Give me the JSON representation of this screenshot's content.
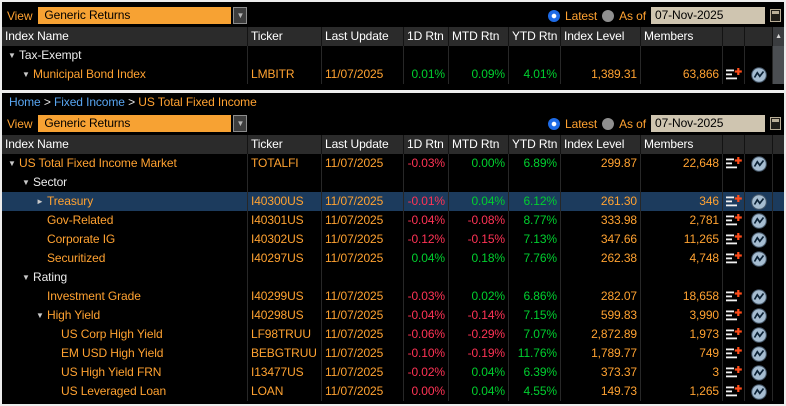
{
  "colors": {
    "amber_text": "#ffa231",
    "dropdown_bg": "#f7a233",
    "positive_green": "#00d02f",
    "negative_red": "#ff3355",
    "selected_row_bg": "#1c3b5d",
    "link_blue": "#58a5f0",
    "radio_selected_blue": "#1e6be6",
    "date_field_bg": "#cfc5b0",
    "header_bg": "#2b2b2b"
  },
  "icons": {
    "dropdown_arrow": "▼",
    "scroll_up": "▲",
    "tree_expanded": "▼",
    "tree_collapsed": "►"
  },
  "breadcrumb": {
    "separator": ">",
    "items": [
      {
        "label": "Home",
        "color": "blue"
      },
      {
        "label": "Fixed Income",
        "color": "blue"
      },
      {
        "label": "US Total Fixed Income",
        "color": "orange"
      }
    ]
  },
  "top_panel": {
    "view_label": "View",
    "view_value": "Generic Returns",
    "latest_label": "Latest",
    "as_of_label": "As of",
    "date_value": "07-Nov-2025",
    "scroll": true,
    "columns": [
      "Index Name",
      "Ticker",
      "Last Update",
      "1D Rtn",
      "MTD Rtn",
      "YTD Rtn",
      "Index Level",
      "Members"
    ],
    "rows": [
      {
        "name": "Tax-Exempt",
        "indent": 0,
        "arrow": "down",
        "white": true
      },
      {
        "name": "Municipal Bond Index",
        "indent": 1,
        "arrow": "down",
        "ticker": "LMBITR",
        "update": "11/07/2025",
        "d1": "0.01%",
        "d1c": "green",
        "mtd": "0.09%",
        "mtdc": "green",
        "ytd": "4.01%",
        "ytdc": "green",
        "level": "1,389.31",
        "members": "63,866",
        "icons": true
      }
    ]
  },
  "bottom_panel": {
    "view_label": "View",
    "view_value": "Generic Returns",
    "latest_label": "Latest",
    "as_of_label": "As of",
    "date_value": "07-Nov-2025",
    "scroll": false,
    "columns": [
      "Index Name",
      "Ticker",
      "Last Update",
      "1D Rtn",
      "MTD Rtn",
      "YTD Rtn",
      "Index Level",
      "Members"
    ],
    "rows": [
      {
        "name": "US Total Fixed Income Market",
        "indent": 0,
        "arrow": "down",
        "ticker": "TOTALFI",
        "update": "11/07/2025",
        "d1": "-0.03%",
        "d1c": "red",
        "mtd": "0.00%",
        "mtdc": "green",
        "ytd": "6.89%",
        "ytdc": "green",
        "level": "299.87",
        "members": "22,648",
        "icons": true
      },
      {
        "name": "Sector",
        "indent": 1,
        "arrow": "down",
        "white": true
      },
      {
        "name": "Treasury",
        "indent": 2,
        "arrow": "right",
        "selected": true,
        "ticker": "I40300US",
        "update": "11/07/2025",
        "d1": "-0.01%",
        "d1c": "red",
        "mtd": "0.04%",
        "mtdc": "green",
        "ytd": "6.12%",
        "ytdc": "green",
        "level": "261.30",
        "members": "346",
        "icons": true
      },
      {
        "name": "Gov-Related",
        "indent": 2,
        "ticker": "I40301US",
        "update": "11/07/2025",
        "d1": "-0.04%",
        "d1c": "red",
        "mtd": "-0.08%",
        "mtdc": "red",
        "ytd": "8.77%",
        "ytdc": "green",
        "level": "333.98",
        "members": "2,781",
        "icons": true
      },
      {
        "name": "Corporate IG",
        "indent": 2,
        "ticker": "I40302US",
        "update": "11/07/2025",
        "d1": "-0.12%",
        "d1c": "red",
        "mtd": "-0.15%",
        "mtdc": "red",
        "ytd": "7.13%",
        "ytdc": "green",
        "level": "347.66",
        "members": "11,265",
        "icons": true
      },
      {
        "name": "Securitized",
        "indent": 2,
        "ticker": "I40297US",
        "update": "11/07/2025",
        "d1": "0.04%",
        "d1c": "green",
        "mtd": "0.18%",
        "mtdc": "green",
        "ytd": "7.76%",
        "ytdc": "green",
        "level": "262.38",
        "members": "4,748",
        "icons": true
      },
      {
        "name": "Rating",
        "indent": 1,
        "arrow": "down",
        "white": true
      },
      {
        "name": "Investment Grade",
        "indent": 2,
        "ticker": "I40299US",
        "update": "11/07/2025",
        "d1": "-0.03%",
        "d1c": "red",
        "mtd": "0.02%",
        "mtdc": "green",
        "ytd": "6.86%",
        "ytdc": "green",
        "level": "282.07",
        "members": "18,658",
        "icons": true
      },
      {
        "name": "High Yield",
        "indent": 2,
        "arrow": "down",
        "ticker": "I40298US",
        "update": "11/07/2025",
        "d1": "-0.04%",
        "d1c": "red",
        "mtd": "-0.14%",
        "mtdc": "red",
        "ytd": "7.15%",
        "ytdc": "green",
        "level": "599.83",
        "members": "3,990",
        "icons": true
      },
      {
        "name": "US Corp High Yield",
        "indent": 3,
        "ticker": "LF98TRUU",
        "update": "11/07/2025",
        "d1": "-0.06%",
        "d1c": "red",
        "mtd": "-0.29%",
        "mtdc": "red",
        "ytd": "7.07%",
        "ytdc": "green",
        "level": "2,872.89",
        "members": "1,973",
        "icons": true
      },
      {
        "name": "EM USD High Yield",
        "indent": 3,
        "ticker": "BEBGTRUU",
        "update": "11/07/2025",
        "d1": "-0.10%",
        "d1c": "red",
        "mtd": "-0.19%",
        "mtdc": "red",
        "ytd": "11.76%",
        "ytdc": "green",
        "level": "1,789.77",
        "members": "749",
        "icons": true
      },
      {
        "name": "US High Yield FRN",
        "indent": 3,
        "ticker": "I13477US",
        "update": "11/07/2025",
        "d1": "-0.02%",
        "d1c": "red",
        "mtd": "0.04%",
        "mtdc": "green",
        "ytd": "6.39%",
        "ytdc": "green",
        "level": "373.37",
        "members": "3",
        "icons": true
      },
      {
        "name": "US Leveraged Loan",
        "indent": 3,
        "ticker": "LOAN",
        "update": "11/07/2025",
        "d1": "0.00%",
        "d1c": "red",
        "mtd": "0.04%",
        "mtdc": "green",
        "ytd": "4.55%",
        "ytdc": "green",
        "level": "149.73",
        "members": "1,265",
        "icons": true
      }
    ]
  }
}
